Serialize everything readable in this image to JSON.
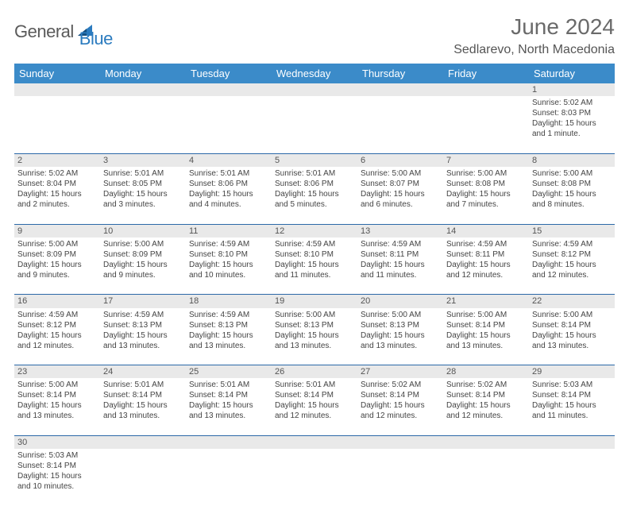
{
  "brand": {
    "name1": "General",
    "name2": "Blue",
    "icon_color": "#2b7bbf"
  },
  "title": "June 2024",
  "location": "Sedlarevo, North Macedonia",
  "colors": {
    "header_bg": "#3b8bc9",
    "header_fg": "#ffffff",
    "num_bg": "#e9e9e9",
    "rule": "#2c69a8"
  },
  "weekdays": [
    "Sunday",
    "Monday",
    "Tuesday",
    "Wednesday",
    "Thursday",
    "Friday",
    "Saturday"
  ],
  "weeks": [
    [
      null,
      null,
      null,
      null,
      null,
      null,
      {
        "n": "1",
        "sr": "5:02 AM",
        "ss": "8:03 PM",
        "dl": "15 hours and 1 minute."
      }
    ],
    [
      {
        "n": "2",
        "sr": "5:02 AM",
        "ss": "8:04 PM",
        "dl": "15 hours and 2 minutes."
      },
      {
        "n": "3",
        "sr": "5:01 AM",
        "ss": "8:05 PM",
        "dl": "15 hours and 3 minutes."
      },
      {
        "n": "4",
        "sr": "5:01 AM",
        "ss": "8:06 PM",
        "dl": "15 hours and 4 minutes."
      },
      {
        "n": "5",
        "sr": "5:01 AM",
        "ss": "8:06 PM",
        "dl": "15 hours and 5 minutes."
      },
      {
        "n": "6",
        "sr": "5:00 AM",
        "ss": "8:07 PM",
        "dl": "15 hours and 6 minutes."
      },
      {
        "n": "7",
        "sr": "5:00 AM",
        "ss": "8:08 PM",
        "dl": "15 hours and 7 minutes."
      },
      {
        "n": "8",
        "sr": "5:00 AM",
        "ss": "8:08 PM",
        "dl": "15 hours and 8 minutes."
      }
    ],
    [
      {
        "n": "9",
        "sr": "5:00 AM",
        "ss": "8:09 PM",
        "dl": "15 hours and 9 minutes."
      },
      {
        "n": "10",
        "sr": "5:00 AM",
        "ss": "8:09 PM",
        "dl": "15 hours and 9 minutes."
      },
      {
        "n": "11",
        "sr": "4:59 AM",
        "ss": "8:10 PM",
        "dl": "15 hours and 10 minutes."
      },
      {
        "n": "12",
        "sr": "4:59 AM",
        "ss": "8:10 PM",
        "dl": "15 hours and 11 minutes."
      },
      {
        "n": "13",
        "sr": "4:59 AM",
        "ss": "8:11 PM",
        "dl": "15 hours and 11 minutes."
      },
      {
        "n": "14",
        "sr": "4:59 AM",
        "ss": "8:11 PM",
        "dl": "15 hours and 12 minutes."
      },
      {
        "n": "15",
        "sr": "4:59 AM",
        "ss": "8:12 PM",
        "dl": "15 hours and 12 minutes."
      }
    ],
    [
      {
        "n": "16",
        "sr": "4:59 AM",
        "ss": "8:12 PM",
        "dl": "15 hours and 12 minutes."
      },
      {
        "n": "17",
        "sr": "4:59 AM",
        "ss": "8:13 PM",
        "dl": "15 hours and 13 minutes."
      },
      {
        "n": "18",
        "sr": "4:59 AM",
        "ss": "8:13 PM",
        "dl": "15 hours and 13 minutes."
      },
      {
        "n": "19",
        "sr": "5:00 AM",
        "ss": "8:13 PM",
        "dl": "15 hours and 13 minutes."
      },
      {
        "n": "20",
        "sr": "5:00 AM",
        "ss": "8:13 PM",
        "dl": "15 hours and 13 minutes."
      },
      {
        "n": "21",
        "sr": "5:00 AM",
        "ss": "8:14 PM",
        "dl": "15 hours and 13 minutes."
      },
      {
        "n": "22",
        "sr": "5:00 AM",
        "ss": "8:14 PM",
        "dl": "15 hours and 13 minutes."
      }
    ],
    [
      {
        "n": "23",
        "sr": "5:00 AM",
        "ss": "8:14 PM",
        "dl": "15 hours and 13 minutes."
      },
      {
        "n": "24",
        "sr": "5:01 AM",
        "ss": "8:14 PM",
        "dl": "15 hours and 13 minutes."
      },
      {
        "n": "25",
        "sr": "5:01 AM",
        "ss": "8:14 PM",
        "dl": "15 hours and 13 minutes."
      },
      {
        "n": "26",
        "sr": "5:01 AM",
        "ss": "8:14 PM",
        "dl": "15 hours and 12 minutes."
      },
      {
        "n": "27",
        "sr": "5:02 AM",
        "ss": "8:14 PM",
        "dl": "15 hours and 12 minutes."
      },
      {
        "n": "28",
        "sr": "5:02 AM",
        "ss": "8:14 PM",
        "dl": "15 hours and 12 minutes."
      },
      {
        "n": "29",
        "sr": "5:03 AM",
        "ss": "8:14 PM",
        "dl": "15 hours and 11 minutes."
      }
    ],
    [
      {
        "n": "30",
        "sr": "5:03 AM",
        "ss": "8:14 PM",
        "dl": "15 hours and 10 minutes."
      },
      null,
      null,
      null,
      null,
      null,
      null
    ]
  ],
  "labels": {
    "sunrise": "Sunrise:",
    "sunset": "Sunset:",
    "daylight": "Daylight:"
  }
}
